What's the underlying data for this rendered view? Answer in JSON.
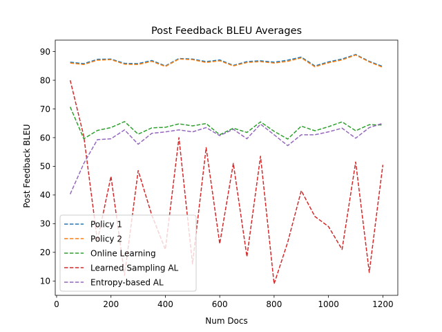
{
  "chart_data": {
    "type": "line",
    "title": "Post Feedback BLEU Averages",
    "xlabel": "Num Docs",
    "ylabel": "Post Feedback BLEU",
    "xlim": [
      -5,
      1255
    ],
    "ylim": [
      5,
      94
    ],
    "xticks": [
      0,
      200,
      400,
      600,
      800,
      1000,
      1200
    ],
    "yticks": [
      10,
      20,
      30,
      40,
      50,
      60,
      70,
      80,
      90
    ],
    "grid": false,
    "legend_position": "bottom-left",
    "line_style": "dashed",
    "x": [
      50,
      100,
      150,
      200,
      250,
      300,
      350,
      400,
      450,
      500,
      550,
      600,
      650,
      700,
      750,
      800,
      850,
      900,
      950,
      1000,
      1050,
      1100,
      1150,
      1200
    ],
    "series": [
      {
        "name": "Policy 1",
        "color": "#1f77b4",
        "values": [
          86.3,
          85.8,
          87.3,
          87.4,
          85.9,
          85.8,
          86.9,
          85.0,
          87.6,
          87.4,
          86.5,
          87.1,
          85.2,
          86.5,
          86.8,
          86.3,
          87.0,
          88.1,
          85.0,
          86.4,
          87.4,
          89.0,
          86.6,
          84.8
        ]
      },
      {
        "name": "Policy 2",
        "color": "#ff7f0e",
        "values": [
          86.0,
          85.5,
          87.0,
          87.2,
          85.6,
          85.5,
          86.6,
          84.8,
          87.4,
          87.2,
          86.2,
          86.8,
          85.0,
          86.2,
          86.5,
          86.0,
          86.6,
          87.8,
          84.7,
          86.1,
          87.1,
          88.8,
          86.4,
          84.5
        ]
      },
      {
        "name": "Online Learning",
        "color": "#2ca02c",
        "values": [
          70.7,
          59.6,
          62.5,
          63.5,
          65.6,
          61.2,
          63.4,
          63.6,
          64.8,
          64.1,
          64.9,
          61.0,
          63.3,
          61.8,
          65.5,
          62.2,
          59.5,
          64.0,
          62.4,
          63.8,
          65.5,
          62.4,
          64.5,
          64.4
        ]
      },
      {
        "name": "Learned Sampling AL",
        "color": "#d62728",
        "values": [
          80.0,
          60.5,
          24.0,
          46.5,
          12.0,
          48.5,
          33.0,
          21.0,
          60.0,
          16.0,
          56.5,
          23.0,
          51.0,
          18.5,
          53.5,
          9.0,
          23.5,
          41.5,
          32.5,
          29.0,
          21.0,
          51.5,
          13.0,
          50.5
        ]
      },
      {
        "name": "Entropy-based AL",
        "color": "#9467bd",
        "values": [
          40.3,
          51.0,
          59.3,
          59.6,
          62.7,
          57.7,
          61.5,
          62.0,
          62.7,
          62.0,
          63.5,
          60.7,
          62.9,
          59.6,
          64.7,
          61.0,
          57.2,
          61.0,
          61.0,
          62.0,
          63.3,
          59.8,
          63.5,
          65.0
        ]
      }
    ]
  }
}
